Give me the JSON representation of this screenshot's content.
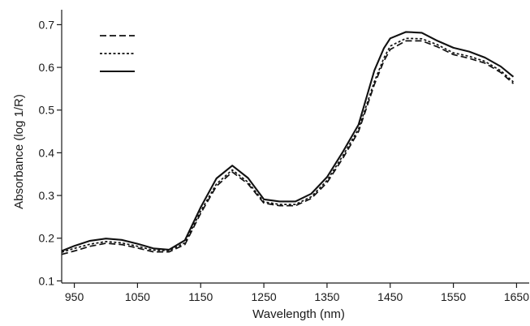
{
  "chart_data": {
    "type": "line",
    "title": "",
    "xlabel": "Wavelength (nm)",
    "ylabel": "Absorbance (log 1/R)",
    "xlim": [
      930,
      1670
    ],
    "ylim": [
      0.095,
      0.735
    ],
    "xticks": [
      950,
      1050,
      1150,
      1250,
      1350,
      1450,
      1550,
      1650
    ],
    "yticks": [
      0.1,
      0.2,
      0.3,
      0.4,
      0.5,
      0.6,
      0.7
    ],
    "grid": false,
    "legend": {
      "placement": "top-left",
      "entries_labeled": false
    },
    "series": [
      {
        "style": "dashed",
        "x": [
          930,
          950,
          975,
          1000,
          1025,
          1050,
          1075,
          1100,
          1125,
          1150,
          1175,
          1200,
          1225,
          1250,
          1275,
          1300,
          1325,
          1350,
          1375,
          1400,
          1425,
          1440,
          1450,
          1475,
          1500,
          1525,
          1550,
          1575,
          1600,
          1625,
          1645
        ],
        "y": [
          0.162,
          0.17,
          0.181,
          0.188,
          0.185,
          0.177,
          0.168,
          0.168,
          0.185,
          0.258,
          0.322,
          0.355,
          0.327,
          0.282,
          0.276,
          0.276,
          0.293,
          0.33,
          0.387,
          0.45,
          0.56,
          0.615,
          0.642,
          0.662,
          0.662,
          0.648,
          0.63,
          0.621,
          0.61,
          0.588,
          0.562
        ]
      },
      {
        "style": "dotted",
        "x": [
          930,
          950,
          975,
          1000,
          1025,
          1050,
          1075,
          1100,
          1125,
          1150,
          1175,
          1200,
          1225,
          1250,
          1275,
          1300,
          1325,
          1350,
          1375,
          1400,
          1425,
          1440,
          1450,
          1475,
          1500,
          1525,
          1550,
          1575,
          1600,
          1625,
          1645
        ],
        "y": [
          0.167,
          0.176,
          0.186,
          0.192,
          0.189,
          0.181,
          0.172,
          0.171,
          0.189,
          0.263,
          0.327,
          0.36,
          0.331,
          0.285,
          0.279,
          0.279,
          0.297,
          0.335,
          0.393,
          0.456,
          0.567,
          0.622,
          0.65,
          0.668,
          0.667,
          0.653,
          0.634,
          0.626,
          0.614,
          0.592,
          0.566
        ]
      },
      {
        "style": "solid",
        "x": [
          930,
          950,
          975,
          1000,
          1025,
          1050,
          1075,
          1100,
          1125,
          1150,
          1175,
          1200,
          1225,
          1250,
          1275,
          1300,
          1325,
          1350,
          1375,
          1400,
          1425,
          1440,
          1450,
          1475,
          1500,
          1525,
          1550,
          1575,
          1600,
          1625,
          1645
        ],
        "y": [
          0.17,
          0.182,
          0.194,
          0.199,
          0.196,
          0.187,
          0.176,
          0.173,
          0.195,
          0.272,
          0.34,
          0.37,
          0.341,
          0.291,
          0.286,
          0.286,
          0.304,
          0.343,
          0.402,
          0.466,
          0.593,
          0.645,
          0.668,
          0.683,
          0.681,
          0.662,
          0.646,
          0.637,
          0.623,
          0.602,
          0.578
        ]
      }
    ]
  }
}
